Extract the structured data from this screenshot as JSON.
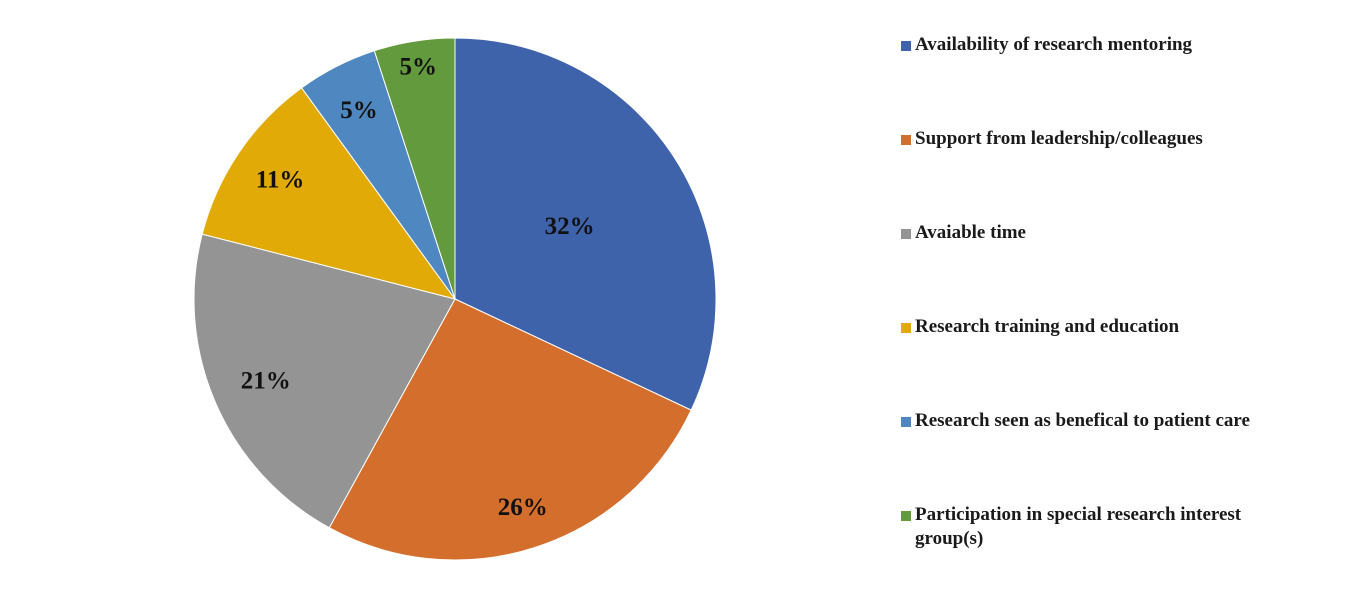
{
  "chart_data": {
    "type": "pie",
    "title": "",
    "legend_position": "right",
    "start_angle_deg": 0,
    "direction": "clockwise",
    "slices": [
      {
        "name": "Availability of research mentoring",
        "value": 32,
        "label": "32%",
        "color": "#3e63ab"
      },
      {
        "name": "Support from leadership/colleagues",
        "value": 26,
        "label": "26%",
        "color": "#d46e2c"
      },
      {
        "name": "Avaiable time",
        "value": 21,
        "label": "21%",
        "color": "#949494"
      },
      {
        "name": "Research training and education",
        "value": 11,
        "label": "11%",
        "color": "#e2aa06"
      },
      {
        "name": "Research seen as benefical to patient care",
        "value": 5,
        "label": "5%",
        "color": "#4f88c1"
      },
      {
        "name": "Participation in special research interest group(s)",
        "value": 5,
        "label": "5%",
        "color": "#639a3d"
      }
    ]
  },
  "legend": {
    "items": [
      {
        "label": "Availability of research mentoring",
        "color": "#3e63ab"
      },
      {
        "label": "Support from leadership/colleagues",
        "color": "#d46e2c"
      },
      {
        "label": "Avaiable time",
        "color": "#949494"
      },
      {
        "label": "Research training and education",
        "color": "#e2aa06"
      },
      {
        "label": "Research seen as benefical to patient care",
        "color": "#4f88c1"
      },
      {
        "label": "Participation in special research interest group(s)",
        "color": "#639a3d"
      }
    ]
  }
}
